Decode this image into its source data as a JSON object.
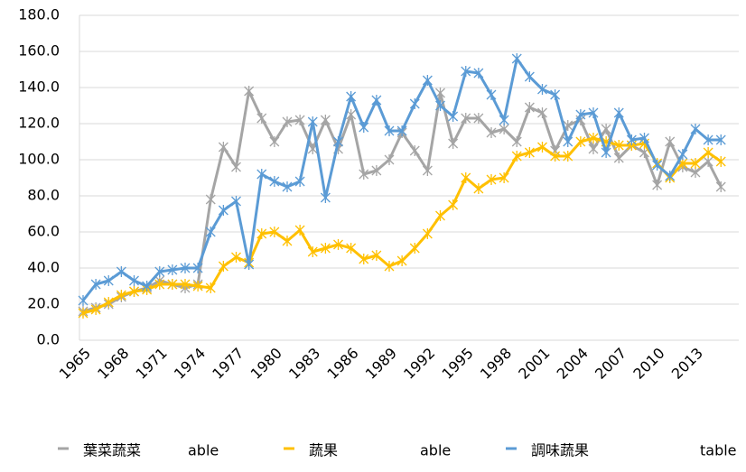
{
  "chart_data": {
    "type": "line",
    "categories": [
      "1965",
      null,
      null,
      "1968",
      null,
      null,
      "1971",
      null,
      null,
      "1974",
      null,
      null,
      "1977",
      null,
      null,
      "1980",
      null,
      null,
      "1983",
      null,
      null,
      "1986",
      null,
      null,
      "1989",
      null,
      null,
      "1992",
      null,
      null,
      "1995",
      null,
      null,
      "1998",
      null,
      null,
      "2001",
      null,
      null,
      "2004",
      null,
      null,
      "2007",
      null,
      null,
      "2010",
      null,
      null,
      "2013",
      null,
      null
    ],
    "series": [
      {
        "name": "葉菜蔬菜",
        "color": "#a5a5a5",
        "values": [
          16,
          18,
          20,
          24,
          27,
          29,
          33,
          31,
          29,
          31,
          78,
          107,
          96,
          138,
          123,
          110,
          121,
          122,
          106,
          122,
          106,
          125,
          92,
          94,
          100,
          115,
          105,
          94,
          137,
          109,
          123,
          123,
          115,
          117,
          110,
          129,
          126,
          105,
          119,
          122,
          106,
          117,
          101,
          108,
          104,
          86,
          110,
          96,
          93,
          99,
          85
        ]
      },
      {
        "name": "蔬果",
        "color": "#ffc000",
        "values": [
          15,
          17,
          21,
          25,
          27,
          28,
          31,
          31,
          31,
          30,
          29,
          41,
          46,
          43,
          59,
          60,
          55,
          61,
          49,
          51,
          53,
          51,
          45,
          47,
          41,
          44,
          51,
          59,
          69,
          75,
          90,
          84,
          89,
          90,
          102,
          104,
          107,
          102,
          102,
          110,
          112,
          110,
          108,
          108,
          109,
          98,
          90,
          98,
          98,
          104,
          99
        ]
      },
      {
        "name": "調味蔬果",
        "color": "#5b9bd5",
        "values": [
          22,
          31,
          33,
          38,
          33,
          30,
          38,
          39,
          40,
          40,
          60,
          72,
          77,
          42,
          92,
          88,
          85,
          88,
          121,
          79,
          110,
          135,
          118,
          133,
          116,
          116,
          131,
          144,
          130,
          124,
          149,
          148,
          136,
          122,
          156,
          146,
          139,
          136,
          110,
          125,
          126,
          104,
          126,
          111,
          112,
          97,
          91,
          103,
          117,
          111,
          111
        ]
      }
    ],
    "ylim": [
      0,
      180
    ],
    "yticks": [
      {
        "value": 0,
        "label": "0.0"
      },
      {
        "value": 20,
        "label": "20.0"
      },
      {
        "value": 40,
        "label": "40.0"
      },
      {
        "value": 60,
        "label": "60.0"
      },
      {
        "value": 80,
        "label": "80.0"
      },
      {
        "value": 100,
        "label": "100.0"
      },
      {
        "value": 120,
        "label": "120.0"
      },
      {
        "value": 140,
        "label": "140.0"
      },
      {
        "value": 160,
        "label": "160.0"
      },
      {
        "value": 180,
        "label": "180.0"
      }
    ],
    "grid": true,
    "legend": "bottom",
    "annotations": [
      "able",
      "able",
      "table"
    ]
  }
}
